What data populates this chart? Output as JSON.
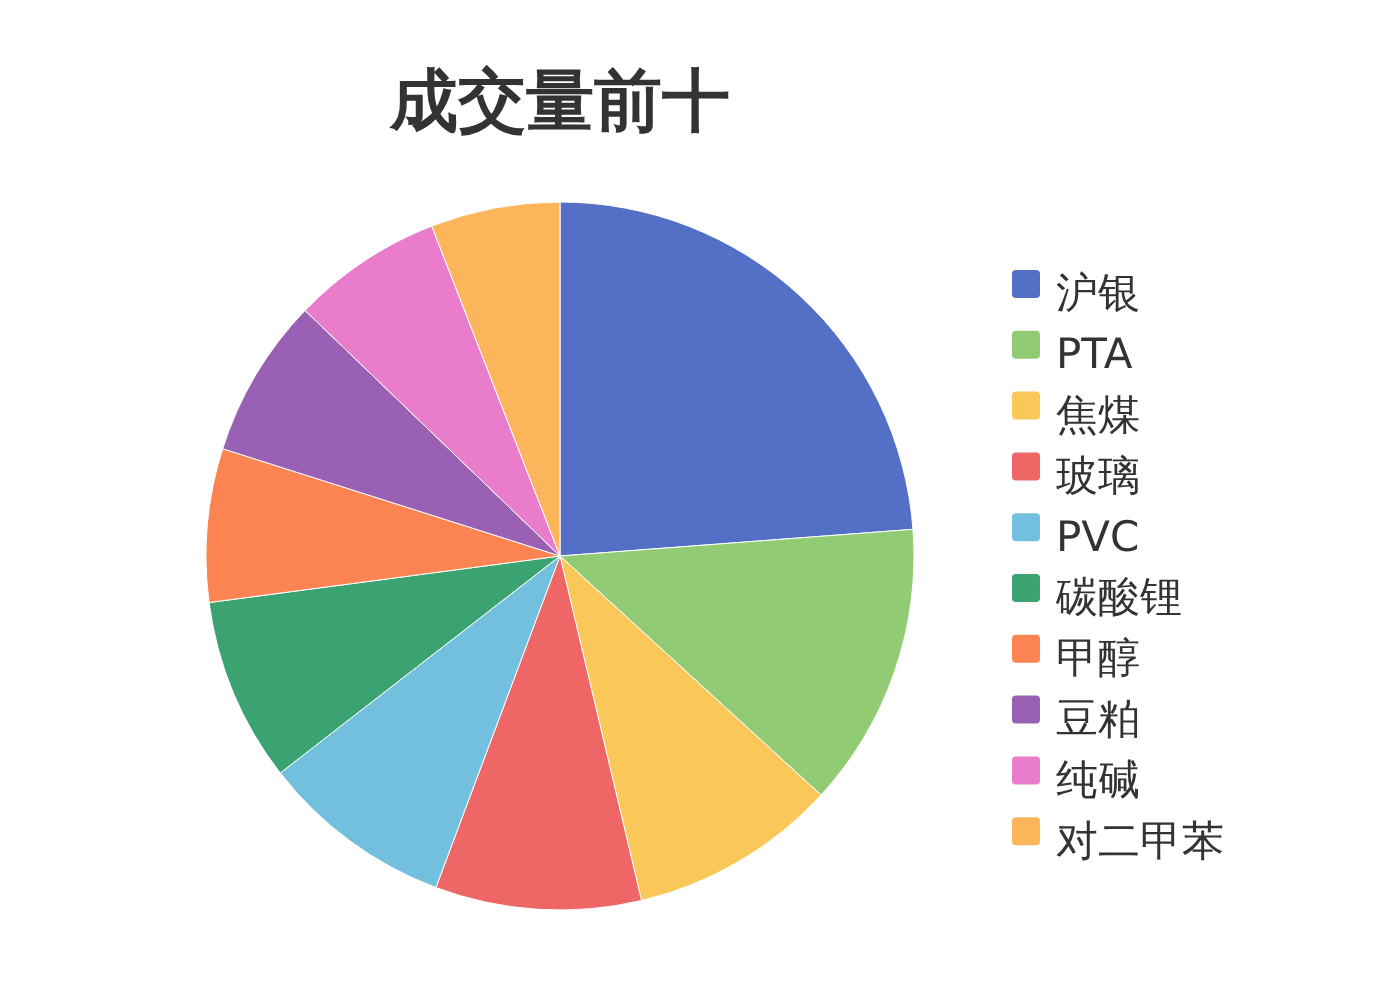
{
  "chart_data": {
    "type": "pie",
    "title": "成交量前十",
    "categories": [
      "沪银",
      "PTA",
      "焦煤",
      "玻璃",
      "PVC",
      "碳酸锂",
      "甲醇",
      "豆粕",
      "纯碱",
      "对二甲苯"
    ],
    "values": [
      23.8,
      13,
      9.5,
      9.4,
      8.8,
      8.4,
      7,
      7.3,
      6.9,
      5.9
    ],
    "colors": [
      "#5470c6",
      "#91cc75",
      "#fac858",
      "#ee6666",
      "#73c0de",
      "#3ba272",
      "#fc8452",
      "#9a60b4",
      "#ea7ccc",
      "#fdb55c"
    ],
    "legend": "right"
  }
}
